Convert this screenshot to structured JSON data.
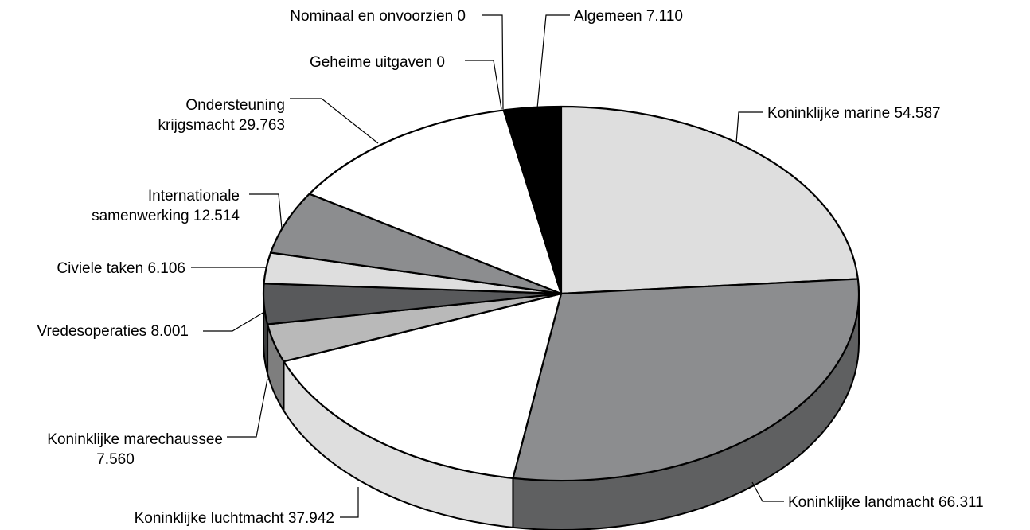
{
  "chart_data": {
    "type": "pie",
    "style": "3d",
    "title": "",
    "slices": [
      {
        "label": "Algemeen",
        "value_text": "7.110",
        "value": 7.11,
        "color": "#000000"
      },
      {
        "label": "Koninklijke marine",
        "value_text": "54.587",
        "value": 54.587,
        "color": "#dedede"
      },
      {
        "label": "Koninklijke landmacht",
        "value_text": "66.311",
        "value": 66.311,
        "color": "#8c8d8f"
      },
      {
        "label": "Koninklijke luchtmacht",
        "value_text": "37.942",
        "value": 37.942,
        "color": "#ffffff"
      },
      {
        "label": "Koninklijke marechaussee",
        "value_text": "7.560",
        "value": 7.56,
        "color": "#b9b9b9"
      },
      {
        "label": "Vredesoperaties",
        "value_text": "8.001",
        "value": 8.001,
        "color": "#58595b"
      },
      {
        "label": "Civiele taken",
        "value_text": "6.106",
        "value": 6.106,
        "color": "#dedede"
      },
      {
        "label": "Internationale samenwerking",
        "value_text": "12.514",
        "value": 12.514,
        "color": "#8c8d8f"
      },
      {
        "label": "Ondersteuning krijgsmacht",
        "value_text": "29.763",
        "value": 29.763,
        "color": "#ffffff"
      },
      {
        "label": "Geheime uitgaven",
        "value_text": "0",
        "value": 0,
        "color": "#ffffff"
      },
      {
        "label": "Nominaal en onvoorzien",
        "value_text": "0",
        "value": 0,
        "color": "#ffffff"
      }
    ]
  },
  "labels": [
    {
      "lines": [
        "Algemeen 7.110"
      ]
    },
    {
      "lines": [
        "Koninklijke marine 54.587"
      ]
    },
    {
      "lines": [
        "Koninklijke landmacht 66.311"
      ]
    },
    {
      "lines": [
        "Koninklijke luchtmacht 37.942"
      ]
    },
    {
      "lines": [
        "Koninklijke marechaussee",
        "7.560"
      ]
    },
    {
      "lines": [
        "Vredesoperaties 8.001"
      ]
    },
    {
      "lines": [
        "Civiele taken 6.106"
      ]
    },
    {
      "lines": [
        "Internationale",
        "samenwerking 12.514"
      ]
    },
    {
      "lines": [
        "Ondersteuning",
        "krijgsmacht 29.763"
      ]
    },
    {
      "lines": [
        "Geheime uitgaven 0"
      ]
    },
    {
      "lines": [
        "Nominaal en onvoorzien 0"
      ]
    }
  ]
}
